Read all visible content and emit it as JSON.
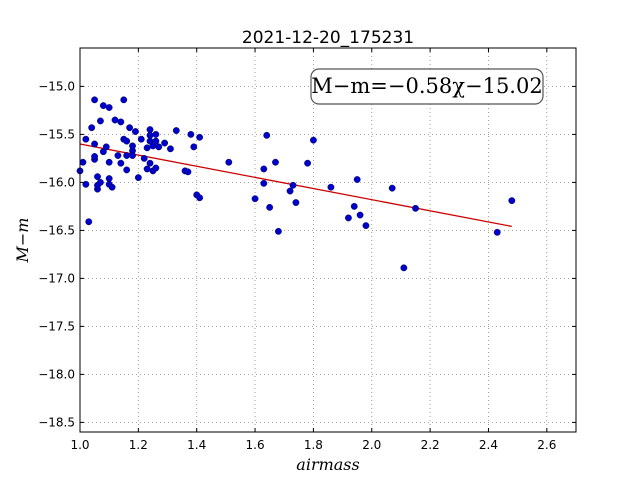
{
  "chart_data": {
    "type": "scatter",
    "title": "2021-12-20_175231",
    "xlabel": "airmass",
    "ylabel": "M−m",
    "annotation": "M−m=−0.58χ−15.02",
    "xlim": [
      1.0,
      2.7
    ],
    "ylim": [
      -18.6,
      -14.6
    ],
    "y_inverted": true,
    "grid": true,
    "x_ticks": [
      "1.0",
      "1.2",
      "1.4",
      "1.6",
      "1.8",
      "2.0",
      "2.2",
      "2.4",
      "2.6"
    ],
    "y_ticks": [
      "−15.0",
      "−15.5",
      "−16.0",
      "−16.5",
      "−17.0",
      "−17.5",
      "−18.0",
      "−18.5"
    ],
    "fit": {
      "slope": -0.58,
      "intercept": -15.02,
      "x_range": [
        1.0,
        2.48
      ]
    },
    "points": [
      [
        1.0,
        -15.88
      ],
      [
        1.01,
        -15.79
      ],
      [
        1.02,
        -15.55
      ],
      [
        1.02,
        -16.02
      ],
      [
        1.03,
        -16.41
      ],
      [
        1.04,
        -15.43
      ],
      [
        1.05,
        -15.14
      ],
      [
        1.05,
        -15.6
      ],
      [
        1.05,
        -15.76
      ],
      [
        1.05,
        -15.73
      ],
      [
        1.06,
        -16.07
      ],
      [
        1.06,
        -16.03
      ],
      [
        1.06,
        -15.94
      ],
      [
        1.07,
        -15.36
      ],
      [
        1.07,
        -16.0
      ],
      [
        1.08,
        -15.68
      ],
      [
        1.08,
        -15.2
      ],
      [
        1.09,
        -15.63
      ],
      [
        1.1,
        -15.79
      ],
      [
        1.1,
        -15.96
      ],
      [
        1.1,
        -16.02
      ],
      [
        1.1,
        -15.22
      ],
      [
        1.11,
        -16.05
      ],
      [
        1.12,
        -15.35
      ],
      [
        1.13,
        -15.72
      ],
      [
        1.14,
        -15.8
      ],
      [
        1.14,
        -15.37
      ],
      [
        1.15,
        -15.14
      ],
      [
        1.15,
        -15.55
      ],
      [
        1.16,
        -15.87
      ],
      [
        1.16,
        -15.72
      ],
      [
        1.16,
        -15.57
      ],
      [
        1.17,
        -15.43
      ],
      [
        1.18,
        -15.67
      ],
      [
        1.18,
        -15.62
      ],
      [
        1.18,
        -15.72
      ],
      [
        1.19,
        -15.47
      ],
      [
        1.2,
        -15.95
      ],
      [
        1.21,
        -15.55
      ],
      [
        1.22,
        -15.75
      ],
      [
        1.23,
        -15.86
      ],
      [
        1.23,
        -15.64
      ],
      [
        1.24,
        -15.45
      ],
      [
        1.24,
        -15.51
      ],
      [
        1.24,
        -15.57
      ],
      [
        1.24,
        -15.8
      ],
      [
        1.25,
        -15.62
      ],
      [
        1.25,
        -15.88
      ],
      [
        1.26,
        -15.5
      ],
      [
        1.26,
        -15.57
      ],
      [
        1.26,
        -15.85
      ],
      [
        1.27,
        -15.63
      ],
      [
        1.29,
        -15.59
      ],
      [
        1.31,
        -15.65
      ],
      [
        1.33,
        -15.46
      ],
      [
        1.36,
        -15.88
      ],
      [
        1.37,
        -15.89
      ],
      [
        1.38,
        -15.5
      ],
      [
        1.39,
        -15.63
      ],
      [
        1.4,
        -16.13
      ],
      [
        1.41,
        -15.53
      ],
      [
        1.41,
        -16.16
      ],
      [
        1.51,
        -15.79
      ],
      [
        1.6,
        -16.17
      ],
      [
        1.63,
        -16.01
      ],
      [
        1.63,
        -15.86
      ],
      [
        1.64,
        -15.51
      ],
      [
        1.65,
        -16.26
      ],
      [
        1.67,
        -15.79
      ],
      [
        1.68,
        -16.51
      ],
      [
        1.72,
        -16.09
      ],
      [
        1.73,
        -16.03
      ],
      [
        1.74,
        -16.21
      ],
      [
        1.78,
        -15.8
      ],
      [
        1.8,
        -15.56
      ],
      [
        1.86,
        -16.05
      ],
      [
        1.92,
        -16.37
      ],
      [
        1.94,
        -16.25
      ],
      [
        1.95,
        -15.97
      ],
      [
        1.96,
        -16.34
      ],
      [
        1.98,
        -16.45
      ],
      [
        2.07,
        -16.06
      ],
      [
        2.11,
        -16.89
      ],
      [
        2.15,
        -16.27
      ],
      [
        2.43,
        -16.52
      ],
      [
        2.48,
        -16.19
      ]
    ],
    "colors": {
      "points": "#0000cc",
      "fit_line": "#cc0000"
    }
  }
}
